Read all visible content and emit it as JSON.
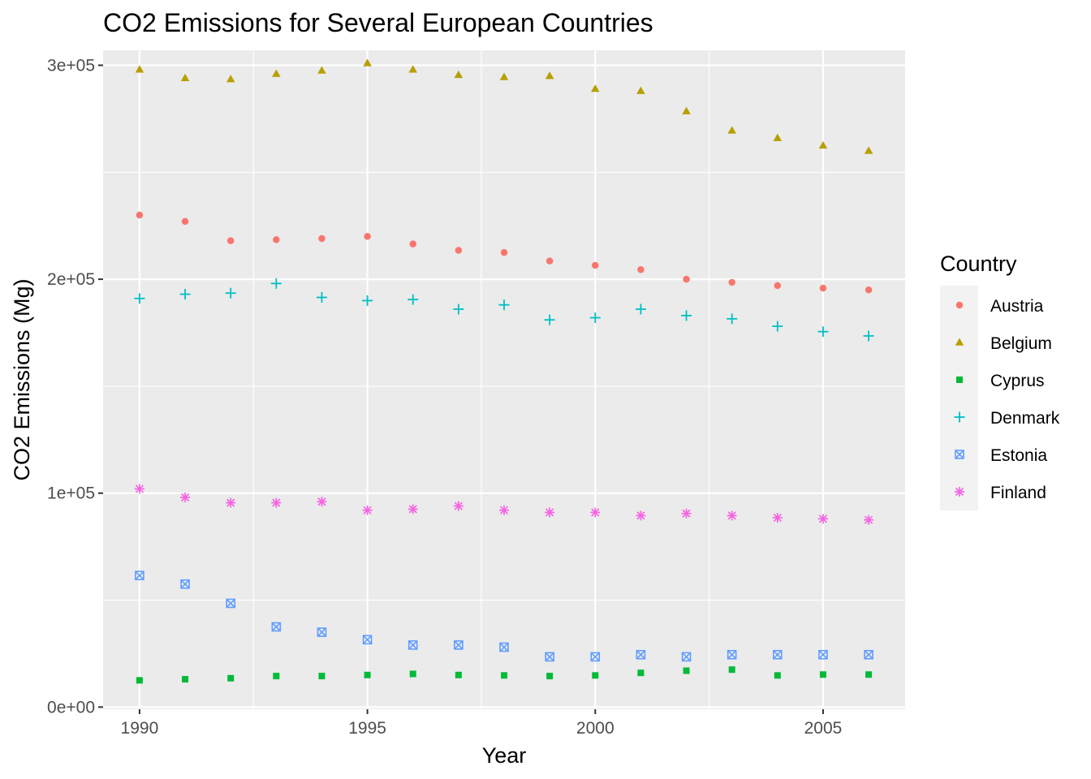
{
  "chart_data": {
    "type": "scatter",
    "title": "CO2 Emissions for Several European Countries",
    "xlabel": "Year",
    "ylabel": "CO2 Emissions (Mg)",
    "xlim": [
      1989.2,
      2006.8
    ],
    "ylim": [
      -1000,
      307000
    ],
    "x_ticks": [
      1990,
      1995,
      2000,
      2005
    ],
    "x_tick_labels": [
      "1990",
      "1995",
      "2000",
      "2005"
    ],
    "y_ticks": [
      0,
      100000,
      200000,
      300000
    ],
    "y_tick_labels": [
      "0e+00",
      "1e+05",
      "2e+05",
      "3e+05"
    ],
    "grid": true,
    "legend": {
      "title": "Country",
      "position": "right"
    },
    "x": [
      1990,
      1991,
      1992,
      1993,
      1994,
      1995,
      1996,
      1997,
      1998,
      1999,
      2000,
      2001,
      2002,
      2003,
      2004,
      2005,
      2006
    ],
    "series": [
      {
        "name": "Austria",
        "color": "#F8766D",
        "shape": "circle",
        "values": [
          230000,
          227000,
          218000,
          218500,
          219000,
          220000,
          216500,
          213500,
          212500,
          208500,
          206500,
          204500,
          200000,
          198500,
          197000,
          195800,
          195000
        ]
      },
      {
        "name": "Belgium",
        "color": "#B79F00",
        "shape": "triangle",
        "values": [
          298000,
          294000,
          293500,
          296000,
          297500,
          301000,
          298000,
          295500,
          294500,
          295000,
          289000,
          288000,
          278500,
          269500,
          266000,
          262500,
          260000
        ]
      },
      {
        "name": "Cyprus",
        "color": "#00BA38",
        "shape": "square",
        "values": [
          12500,
          13000,
          13500,
          14500,
          14500,
          15000,
          15500,
          15000,
          14800,
          14500,
          14800,
          16000,
          17000,
          17500,
          14800,
          15200,
          15200
        ]
      },
      {
        "name": "Denmark",
        "color": "#00BFC4",
        "shape": "plus",
        "values": [
          191000,
          193000,
          193500,
          198000,
          191500,
          190000,
          190500,
          186000,
          188000,
          181000,
          182000,
          186000,
          183000,
          181500,
          178000,
          175500,
          173500
        ]
      },
      {
        "name": "Estonia",
        "color": "#619CFF",
        "shape": "square-x",
        "values": [
          61500,
          57500,
          48500,
          37500,
          35000,
          31500,
          29000,
          29000,
          28000,
          23500,
          23500,
          24500,
          23500,
          24500,
          24500,
          24500,
          24500
        ]
      },
      {
        "name": "Finland",
        "color": "#F564E3",
        "shape": "asterisk",
        "values": [
          102000,
          98000,
          95500,
          95500,
          96000,
          92000,
          92500,
          94000,
          92000,
          91000,
          91000,
          89500,
          90500,
          89500,
          88500,
          88000,
          87500
        ]
      }
    ]
  }
}
